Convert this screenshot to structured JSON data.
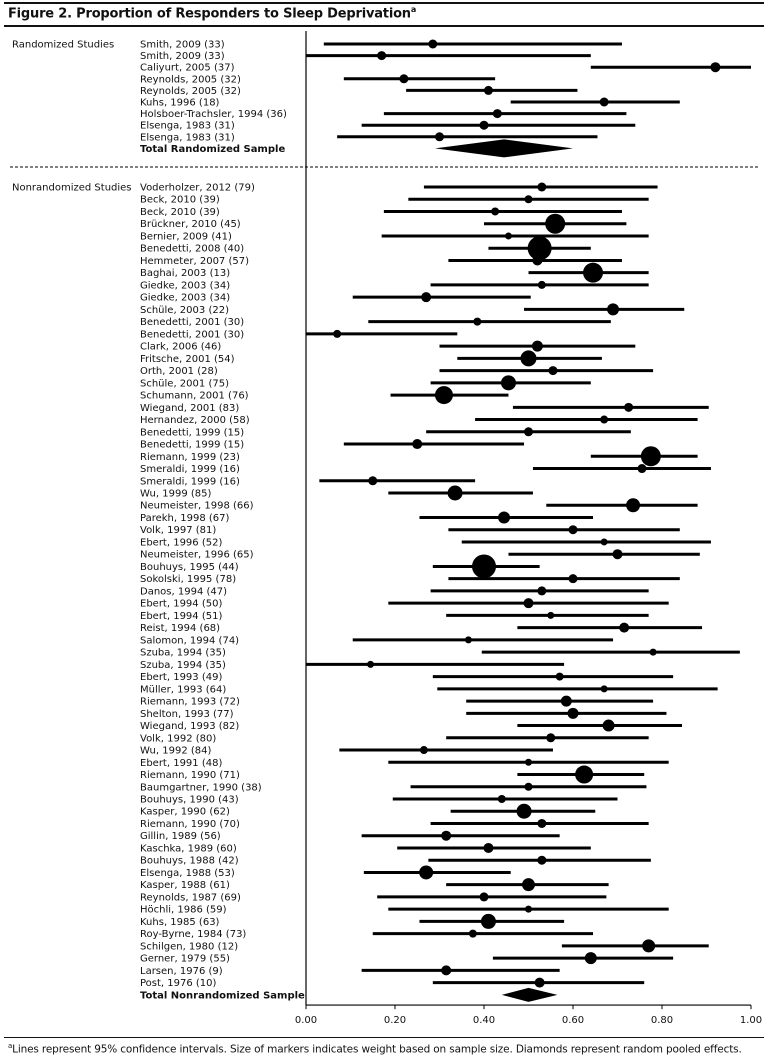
{
  "figure": {
    "title": "Figure 2. Proportion of Responders to Sleep Deprivation",
    "title_sup": "a",
    "footnote_sup": "a",
    "footnote": "Lines represent 95% confidence intervals. Size of markers indicates weight based on sample size. Diamonds represent random pooled effects."
  },
  "chart_data": {
    "type": "forest",
    "xlim": [
      0,
      1
    ],
    "xticks": [
      "0.00",
      "0.20",
      "0.40",
      "0.60",
      "0.80",
      "1.00"
    ],
    "grid": false,
    "colors": {
      "marks": "#000000"
    },
    "groups": [
      {
        "label": "Randomized Studies",
        "studies": [
          {
            "label": "Smith, 2009 (33)",
            "est": 0.285,
            "lo": 0.04,
            "hi": 0.71,
            "w": 4.5
          },
          {
            "label": "Smith, 2009 (33)",
            "est": 0.17,
            "lo": 0.0,
            "hi": 0.64,
            "w": 4.5
          },
          {
            "label": "Caliyurt, 2005 (37)",
            "est": 0.92,
            "lo": 0.64,
            "hi": 1.0,
            "w": 5
          },
          {
            "label": "Reynolds, 2005 (32)",
            "est": 0.22,
            "lo": 0.085,
            "hi": 0.425,
            "w": 4.5
          },
          {
            "label": "Reynolds, 2005 (32)",
            "est": 0.41,
            "lo": 0.225,
            "hi": 0.61,
            "w": 4.5
          },
          {
            "label": "Kuhs, 1996 (18)",
            "est": 0.67,
            "lo": 0.46,
            "hi": 0.84,
            "w": 4.5
          },
          {
            "label": "Holsboer-Trachsler, 1994 (36)",
            "est": 0.43,
            "lo": 0.175,
            "hi": 0.72,
            "w": 4.5
          },
          {
            "label": "Elsenga, 1983 (31)",
            "est": 0.4,
            "lo": 0.125,
            "hi": 0.74,
            "w": 4.5
          },
          {
            "label": "Elsenga, 1983 (31)",
            "est": 0.3,
            "lo": 0.07,
            "hi": 0.655,
            "w": 4.5
          }
        ],
        "total": {
          "label": "Total Randomized Sample",
          "est": 0.445,
          "lo": 0.29,
          "hi": 0.6
        }
      },
      {
        "label": "Nonrandomized Studies",
        "studies": [
          {
            "label": "Voderholzer, 2012 (79)",
            "est": 0.53,
            "lo": 0.265,
            "hi": 0.79,
            "w": 4.5
          },
          {
            "label": "Beck, 2010 (39)",
            "est": 0.5,
            "lo": 0.23,
            "hi": 0.77,
            "w": 4
          },
          {
            "label": "Beck, 2010 (39)",
            "est": 0.425,
            "lo": 0.175,
            "hi": 0.71,
            "w": 4
          },
          {
            "label": "Brückner, 2010 (45)",
            "est": 0.56,
            "lo": 0.4,
            "hi": 0.72,
            "w": 10
          },
          {
            "label": "Bernier, 2009 (41)",
            "est": 0.455,
            "lo": 0.17,
            "hi": 0.77,
            "w": 3.5
          },
          {
            "label": "Benedetti, 2008 (40)",
            "est": 0.525,
            "lo": 0.41,
            "hi": 0.64,
            "w": 12
          },
          {
            "label": "Hemmeter, 2007 (57)",
            "est": 0.52,
            "lo": 0.32,
            "hi": 0.71,
            "w": 5
          },
          {
            "label": "Baghai, 2003 (13)",
            "est": 0.645,
            "lo": 0.5,
            "hi": 0.77,
            "w": 10
          },
          {
            "label": "Giedke, 2003 (34)",
            "est": 0.53,
            "lo": 0.28,
            "hi": 0.77,
            "w": 4
          },
          {
            "label": "Giedke, 2003 (34)",
            "est": 0.27,
            "lo": 0.105,
            "hi": 0.505,
            "w": 5
          },
          {
            "label": "Schüle, 2003 (22)",
            "est": 0.69,
            "lo": 0.49,
            "hi": 0.85,
            "w": 6
          },
          {
            "label": "Benedetti, 2001 (30)",
            "est": 0.385,
            "lo": 0.14,
            "hi": 0.685,
            "w": 4
          },
          {
            "label": "Benedetti, 2001 (30)",
            "est": 0.07,
            "lo": 0.0,
            "hi": 0.34,
            "w": 4
          },
          {
            "label": "Clark, 2006 (46)",
            "est": 0.52,
            "lo": 0.3,
            "hi": 0.74,
            "w": 5.5
          },
          {
            "label": "Fritsche, 2001 (54)",
            "est": 0.5,
            "lo": 0.34,
            "hi": 0.665,
            "w": 8
          },
          {
            "label": "Orth, 2001 (28)",
            "est": 0.555,
            "lo": 0.3,
            "hi": 0.78,
            "w": 4.5
          },
          {
            "label": "Schüle, 2001 (75)",
            "est": 0.455,
            "lo": 0.28,
            "hi": 0.64,
            "w": 7.5
          },
          {
            "label": "Schumann, 2001 (76)",
            "est": 0.31,
            "lo": 0.19,
            "hi": 0.455,
            "w": 9
          },
          {
            "label": "Wiegand, 2001 (83)",
            "est": 0.725,
            "lo": 0.465,
            "hi": 0.905,
            "w": 4.5
          },
          {
            "label": "Hernandez, 2000 (58)",
            "est": 0.67,
            "lo": 0.38,
            "hi": 0.88,
            "w": 4
          },
          {
            "label": "Benedetti, 1999 (15)",
            "est": 0.5,
            "lo": 0.27,
            "hi": 0.73,
            "w": 4.5
          },
          {
            "label": "Benedetti, 1999 (15)",
            "est": 0.25,
            "lo": 0.085,
            "hi": 0.49,
            "w": 5
          },
          {
            "label": "Riemann, 1999 (23)",
            "est": 0.775,
            "lo": 0.64,
            "hi": 0.88,
            "w": 10
          },
          {
            "label": "Smeraldi, 1999 (16)",
            "est": 0.755,
            "lo": 0.51,
            "hi": 0.91,
            "w": 4.5
          },
          {
            "label": "Smeraldi, 1999 (16)",
            "est": 0.15,
            "lo": 0.03,
            "hi": 0.38,
            "w": 4.5
          },
          {
            "label": "Wu, 1999 (85)",
            "est": 0.335,
            "lo": 0.185,
            "hi": 0.51,
            "w": 7.5
          },
          {
            "label": "Neumeister, 1998 (66)",
            "est": 0.735,
            "lo": 0.54,
            "hi": 0.88,
            "w": 7
          },
          {
            "label": "Parekh, 1998 (67)",
            "est": 0.445,
            "lo": 0.255,
            "hi": 0.645,
            "w": 6
          },
          {
            "label": "Volk, 1997 (81)",
            "est": 0.6,
            "lo": 0.32,
            "hi": 0.84,
            "w": 4.5
          },
          {
            "label": "Ebert, 1996 (52)",
            "est": 0.67,
            "lo": 0.35,
            "hi": 0.91,
            "w": 3.5
          },
          {
            "label": "Neumeister, 1996 (65)",
            "est": 0.7,
            "lo": 0.455,
            "hi": 0.885,
            "w": 5
          },
          {
            "label": "Bouhuys, 1995 (44)",
            "est": 0.4,
            "lo": 0.285,
            "hi": 0.525,
            "w": 12
          },
          {
            "label": "Sokolski, 1995 (78)",
            "est": 0.6,
            "lo": 0.32,
            "hi": 0.84,
            "w": 4.5
          },
          {
            "label": "Danos, 1994 (47)",
            "est": 0.53,
            "lo": 0.28,
            "hi": 0.77,
            "w": 4.5
          },
          {
            "label": "Ebert, 1994 (50)",
            "est": 0.5,
            "lo": 0.185,
            "hi": 0.815,
            "w": 5
          },
          {
            "label": "Ebert, 1994 (51)",
            "est": 0.55,
            "lo": 0.315,
            "hi": 0.77,
            "w": 3.5
          },
          {
            "label": "Reist, 1994 (68)",
            "est": 0.715,
            "lo": 0.475,
            "hi": 0.89,
            "w": 5
          },
          {
            "label": "Salomon, 1994 (74)",
            "est": 0.365,
            "lo": 0.105,
            "hi": 0.69,
            "w": 3.5
          },
          {
            "label": "Szuba, 1994 (35)",
            "est": 0.78,
            "lo": 0.395,
            "hi": 0.975,
            "w": 3.5
          },
          {
            "label": "Szuba, 1994 (35)",
            "est": 0.145,
            "lo": 0.0,
            "hi": 0.58,
            "w": 3.5
          },
          {
            "label": "Ebert, 1993 (49)",
            "est": 0.57,
            "lo": 0.285,
            "hi": 0.825,
            "w": 4
          },
          {
            "label": "Müller, 1993 (64)",
            "est": 0.67,
            "lo": 0.295,
            "hi": 0.925,
            "w": 3.5
          },
          {
            "label": "Riemann, 1993 (72)",
            "est": 0.585,
            "lo": 0.36,
            "hi": 0.78,
            "w": 5.5
          },
          {
            "label": "Shelton, 1993 (77)",
            "est": 0.6,
            "lo": 0.36,
            "hi": 0.81,
            "w": 5.5
          },
          {
            "label": "Wiegand, 1993 (82)",
            "est": 0.68,
            "lo": 0.475,
            "hi": 0.845,
            "w": 6
          },
          {
            "label": "Volk, 1992 (80)",
            "est": 0.55,
            "lo": 0.315,
            "hi": 0.77,
            "w": 4.5
          },
          {
            "label": "Wu, 1992 (84)",
            "est": 0.265,
            "lo": 0.075,
            "hi": 0.555,
            "w": 4
          },
          {
            "label": "Ebert, 1991 (48)",
            "est": 0.5,
            "lo": 0.185,
            "hi": 0.815,
            "w": 3.5
          },
          {
            "label": "Riemann, 1990 (71)",
            "est": 0.625,
            "lo": 0.475,
            "hi": 0.76,
            "w": 9
          },
          {
            "label": "Baumgartner, 1990 (38)",
            "est": 0.5,
            "lo": 0.235,
            "hi": 0.765,
            "w": 4
          },
          {
            "label": "Bouhuys, 1990 (43)",
            "est": 0.44,
            "lo": 0.195,
            "hi": 0.7,
            "w": 4
          },
          {
            "label": "Kasper, 1990 (62)",
            "est": 0.49,
            "lo": 0.325,
            "hi": 0.65,
            "w": 7.5
          },
          {
            "label": "Riemann, 1990 (70)",
            "est": 0.53,
            "lo": 0.28,
            "hi": 0.77,
            "w": 4.5
          },
          {
            "label": "Gillin, 1989 (56)",
            "est": 0.315,
            "lo": 0.125,
            "hi": 0.57,
            "w": 5
          },
          {
            "label": "Kaschka, 1989 (60)",
            "est": 0.41,
            "lo": 0.205,
            "hi": 0.64,
            "w": 5
          },
          {
            "label": "Bouhuys, 1988 (42)",
            "est": 0.53,
            "lo": 0.275,
            "hi": 0.775,
            "w": 4.5
          },
          {
            "label": "Elsenga, 1988 (53)",
            "est": 0.27,
            "lo": 0.13,
            "hi": 0.46,
            "w": 7
          },
          {
            "label": "Kasper, 1988 (61)",
            "est": 0.5,
            "lo": 0.315,
            "hi": 0.68,
            "w": 6.5
          },
          {
            "label": "Reynolds, 1987 (69)",
            "est": 0.4,
            "lo": 0.16,
            "hi": 0.675,
            "w": 4.5
          },
          {
            "label": "Höchli, 1986 (59)",
            "est": 0.5,
            "lo": 0.185,
            "hi": 0.815,
            "w": 3.5
          },
          {
            "label": "Kuhs, 1985 (63)",
            "est": 0.41,
            "lo": 0.255,
            "hi": 0.58,
            "w": 7.5
          },
          {
            "label": "Roy-Byrne, 1984 (73)",
            "est": 0.375,
            "lo": 0.15,
            "hi": 0.645,
            "w": 4
          },
          {
            "label": "Schilgen, 1980 (12)",
            "est": 0.77,
            "lo": 0.575,
            "hi": 0.905,
            "w": 6.5
          },
          {
            "label": "Gerner, 1979 (55)",
            "est": 0.64,
            "lo": 0.42,
            "hi": 0.825,
            "w": 6
          },
          {
            "label": "Larsen, 1976 (9)",
            "est": 0.315,
            "lo": 0.125,
            "hi": 0.57,
            "w": 5
          },
          {
            "label": "Post, 1976 (10)",
            "est": 0.525,
            "lo": 0.285,
            "hi": 0.76,
            "w": 5
          }
        ],
        "total": {
          "label": "Total Nonrandomized Sample",
          "est": 0.5,
          "lo": 0.44,
          "hi": 0.565
        }
      }
    ]
  }
}
